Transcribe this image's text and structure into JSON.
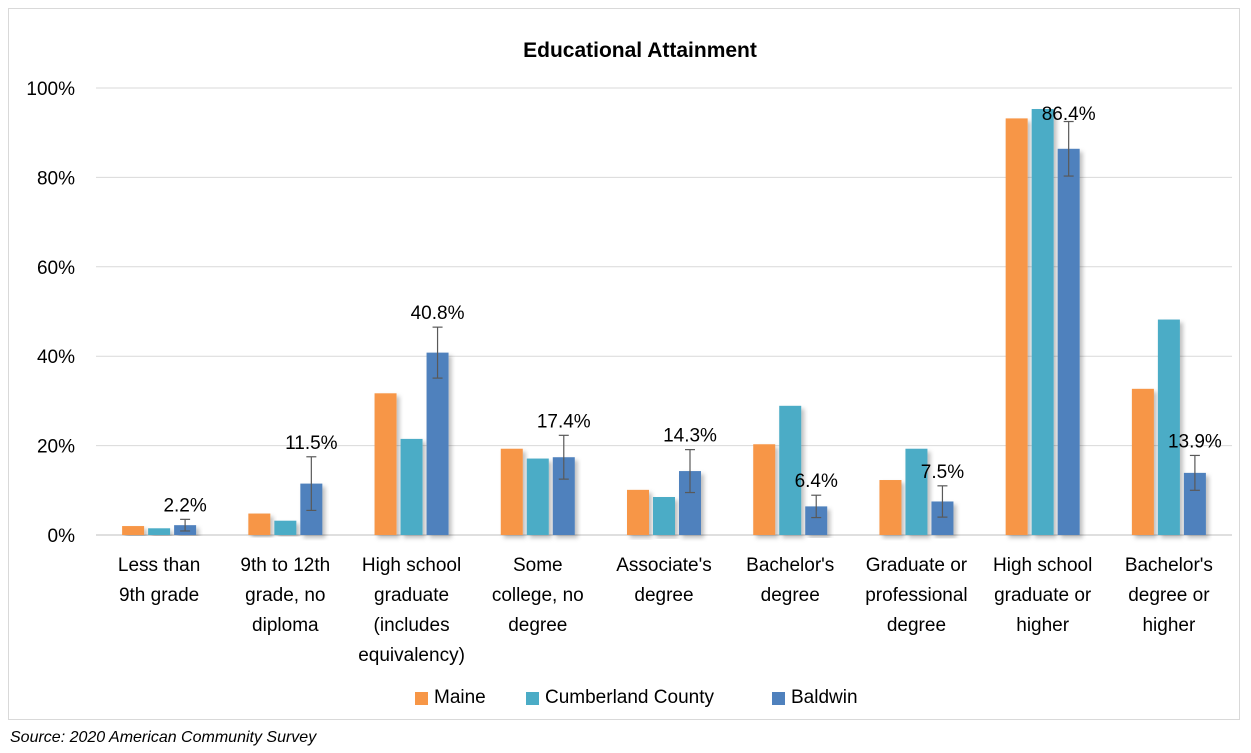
{
  "chart_data": {
    "type": "bar",
    "title": "Educational Attainment",
    "categories": [
      [
        "Less than",
        "9th grade"
      ],
      [
        "9th to 12th",
        "grade, no",
        "diploma"
      ],
      [
        "High school",
        "graduate",
        "(includes",
        "equivalency)"
      ],
      [
        "Some",
        "college, no",
        "degree"
      ],
      [
        "Associate's",
        "degree"
      ],
      [
        "Bachelor's",
        "degree"
      ],
      [
        "Graduate or",
        "professional",
        "degree"
      ],
      [
        "High school",
        "graduate or",
        "higher"
      ],
      [
        "Bachelor's",
        "degree or",
        "higher"
      ]
    ],
    "series": [
      {
        "name": "Maine",
        "color": "#F79646",
        "values": [
          2,
          4.8,
          31.7,
          19.3,
          10.1,
          20.3,
          12.3,
          93.2,
          32.7
        ]
      },
      {
        "name": "Cumberland County",
        "color": "#4BACC6",
        "values": [
          1.5,
          3.2,
          21.5,
          17.1,
          8.5,
          28.9,
          19.3,
          95.3,
          48.2
        ]
      },
      {
        "name": "Baldwin",
        "color": "#4F81BD",
        "values": [
          2.2,
          11.5,
          40.8,
          17.4,
          14.3,
          6.4,
          7.5,
          86.4,
          13.9
        ],
        "error": [
          1.3,
          6,
          5.7,
          4.9,
          4.8,
          2.5,
          3.5,
          6.1,
          3.9
        ],
        "data_labels": [
          "2.2%",
          "11.5%",
          "40.8%",
          "17.4%",
          "14.3%",
          "6.4%",
          "7.5%",
          "86.4%",
          "13.9%"
        ]
      }
    ],
    "ylim": [
      0,
      100
    ],
    "yticks": [
      "0%",
      "20%",
      "40%",
      "60%",
      "80%",
      "100%"
    ],
    "ytick_values": [
      0,
      20,
      40,
      60,
      80,
      100
    ],
    "grid": true,
    "legend": "bottom"
  },
  "source": "Source: 2020 American Community Survey"
}
